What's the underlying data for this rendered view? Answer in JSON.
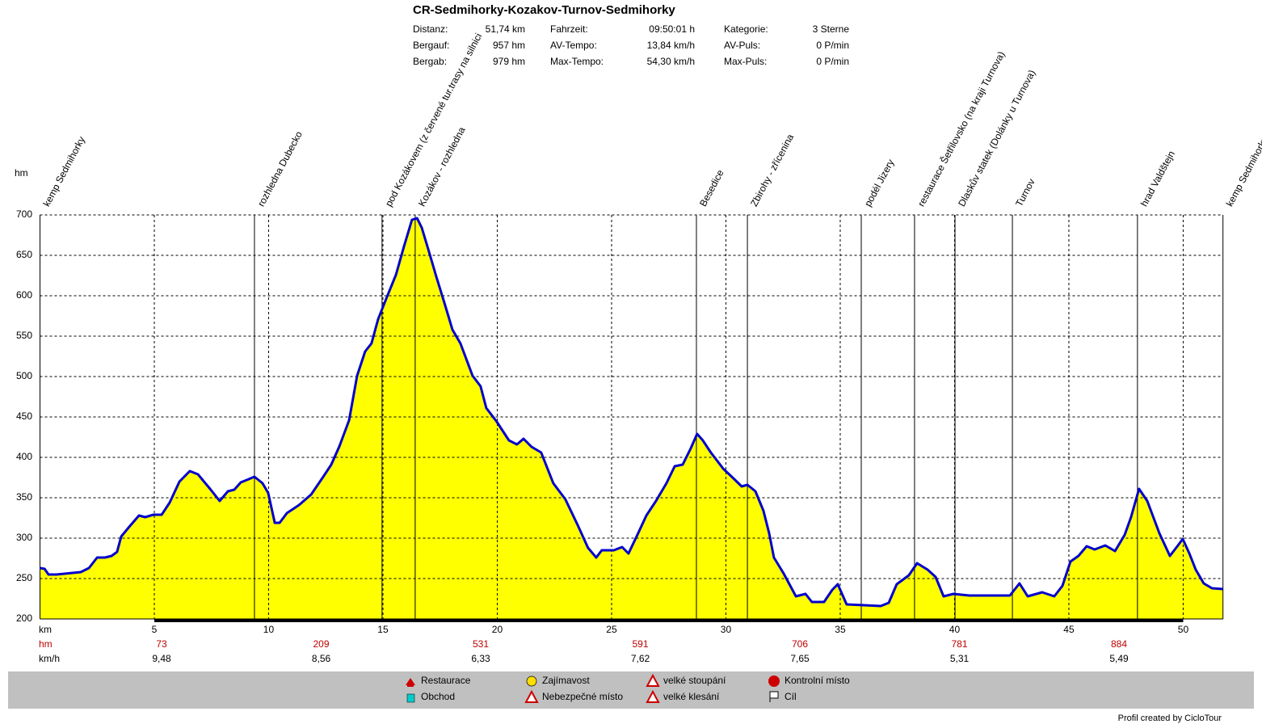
{
  "chart_data": {
    "type": "area",
    "title": "CR-Sedmihorky-Kozakov-Turnov-Sedmihorky",
    "stats": [
      [
        {
          "label": "Distanz:",
          "value": "51,74 km"
        },
        {
          "label": "Fahrzeit:",
          "value": "09:50:01 h"
        },
        {
          "label": "Kategorie:",
          "value": "3 Sterne"
        }
      ],
      [
        {
          "label": "Bergauf:",
          "value": "957 hm"
        },
        {
          "label": "AV-Tempo:",
          "value": "13,84 km/h"
        },
        {
          "label": "AV-Puls:",
          "value": "0 P/min"
        }
      ],
      [
        {
          "label": "Bergab:",
          "value": "979 hm"
        },
        {
          "label": "Max-Tempo:",
          "value": "54,30 km/h"
        },
        {
          "label": "Max-Puls:",
          "value": "0 P/min"
        }
      ]
    ],
    "y_label": "hm",
    "x_label": "km",
    "x": [
      0,
      0.2,
      0.37,
      0.72,
      1.43,
      1.78,
      2.14,
      2.5,
      2.84,
      3.13,
      3.37,
      3.55,
      3.9,
      4.33,
      4.6,
      4.96,
      5.32,
      5.67,
      6.1,
      6.55,
      6.91,
      7.44,
      7.86,
      8.22,
      8.5,
      8.78,
      9.13,
      9.38,
      9.73,
      9.98,
      10.27,
      10.48,
      10.8,
      11.33,
      11.86,
      12.39,
      12.74,
      13.1,
      13.52,
      13.87,
      14.22,
      14.5,
      14.79,
      15.14,
      15.57,
      15.92,
      16.27,
      16.49,
      16.7,
      17.05,
      17.33,
      17.69,
      18.04,
      18.39,
      18.92,
      19.27,
      19.52,
      19.98,
      20.51,
      20.86,
      21.15,
      21.5,
      21.92,
      22.45,
      22.98,
      23.52,
      23.97,
      24.33,
      24.57,
      25.1,
      25.46,
      25.74,
      26.16,
      26.52,
      26.94,
      27.4,
      27.76,
      28.11,
      28.46,
      28.74,
      28.99,
      29.34,
      29.88,
      30.33,
      30.69,
      30.94,
      31.29,
      31.64,
      31.89,
      32.1,
      32.53,
      33.06,
      33.48,
      33.76,
      34.29,
      34.65,
      34.89,
      35.28,
      36.06,
      36.77,
      37.12,
      37.47,
      38.0,
      38.36,
      38.82,
      39.17,
      39.52,
      39.95,
      40.65,
      41.71,
      42.42,
      42.84,
      43.2,
      43.83,
      44.36,
      44.72,
      45.07,
      45.42,
      45.78,
      46.13,
      46.59,
      47.02,
      47.44,
      47.72,
      48.07,
      48.43,
      48.96,
      49.42,
      49.77,
      49.98,
      50.27,
      50.55,
      50.9,
      51.26,
      51.74
    ],
    "series": [
      {
        "name": "hm",
        "color": "#0000cc",
        "fill": "#ffff00",
        "values": [
          263,
          262,
          255,
          255,
          257,
          258,
          263,
          276,
          276,
          278,
          283,
          302,
          314,
          328,
          326,
          329,
          329,
          344,
          370,
          383,
          379,
          361,
          346,
          358,
          360,
          369,
          373,
          376,
          368,
          356,
          319,
          319,
          331,
          341,
          354,
          376,
          391,
          414,
          446,
          501,
          531,
          541,
          571,
          596,
          626,
          661,
          694,
          696,
          684,
          651,
          624,
          591,
          558,
          541,
          501,
          488,
          461,
          444,
          421,
          416,
          423,
          413,
          406,
          368,
          348,
          316,
          288,
          276,
          285,
          285,
          289,
          281,
          306,
          328,
          346,
          368,
          389,
          391,
          411,
          429,
          421,
          406,
          386,
          374,
          364,
          366,
          358,
          334,
          306,
          276,
          256,
          228,
          231,
          221,
          221,
          236,
          243,
          218,
          217,
          216,
          220,
          243,
          254,
          269,
          261,
          252,
          228,
          231,
          229,
          229,
          229,
          244,
          228,
          233,
          228,
          241,
          271,
          278,
          290,
          286,
          291,
          284,
          304,
          326,
          361,
          346,
          306,
          278,
          291,
          299,
          281,
          261,
          244,
          238,
          237
        ]
      }
    ],
    "xlim": [
      0,
      51.74
    ],
    "ylim": [
      200,
      700
    ],
    "xticks": [
      5,
      10,
      15,
      20,
      25,
      30,
      35,
      40,
      45,
      50
    ],
    "yticks": [
      200,
      250,
      300,
      350,
      400,
      450,
      500,
      550,
      600,
      650,
      700
    ],
    "grid": true,
    "waypoints": [
      {
        "label": "kemp Sedmihorky",
        "km": 0
      },
      {
        "label": "rozhledna Dubecko",
        "km": 9.38
      },
      {
        "label": "pod Kozákovem (z červené tur.trasy na silnici",
        "km": 14.96
      },
      {
        "label": "Kozákov - rozhledna",
        "km": 16.41
      },
      {
        "label": "Besedice",
        "km": 28.71
      },
      {
        "label": "Zbirohy - zřícenina",
        "km": 30.94
      },
      {
        "label": "podél Jizery",
        "km": 35.92
      },
      {
        "label": "restaurace Šetřilovsko (na kraji Turnova)",
        "km": 38.25
      },
      {
        "label": "Dlaskův statek (Dolánky u Turnova)",
        "km": 40.02
      },
      {
        "label": "Turnov",
        "km": 42.53
      },
      {
        "label": "hrad Valdštejn",
        "km": 48.0
      },
      {
        "label": "kemp Sedmihorky",
        "km": 51.74
      }
    ],
    "hm_row_label": "hm",
    "hm_row": [
      73,
      209,
      531,
      591,
      706,
      781,
      884
    ],
    "speed_row_label": "km/h",
    "speed_row": [
      {
        "value": 9.48,
        "label": "9,48"
      },
      {
        "value": 8.56,
        "label": "8,56"
      },
      {
        "value": 6.33,
        "label": "6,33"
      },
      {
        "value": 7.62,
        "label": "7,62"
      },
      {
        "value": 7.65,
        "label": "7,65"
      },
      {
        "value": 5.31,
        "label": "5,31"
      },
      {
        "value": 5.49,
        "label": "5,49"
      }
    ],
    "legend": [
      "Restaurace",
      "Obchod",
      "Zajímavost",
      "Nebezpečné místo",
      "velké stoupání",
      "velké klesání",
      "Kontrolní místo",
      "Cíl"
    ],
    "footer": "Profil created by CicloTour"
  }
}
